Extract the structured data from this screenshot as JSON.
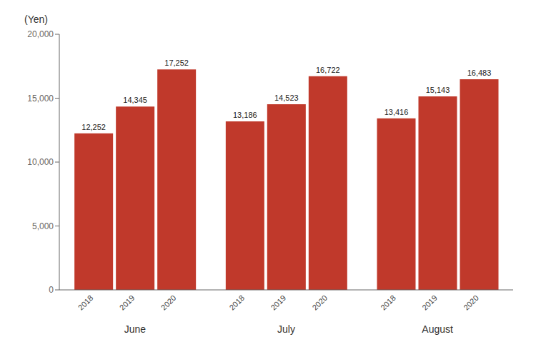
{
  "chart_data": {
    "type": "bar",
    "ylabel": "(Yen)",
    "categories": [
      "June",
      "July",
      "August"
    ],
    "series": [
      {
        "name": "2018",
        "color": "#C0392B",
        "values": [
          12252,
          13186,
          13416
        ],
        "value_labels": [
          "12,252",
          "13,186",
          "13,416"
        ]
      },
      {
        "name": "2019",
        "color": "#C0392B",
        "values": [
          14345,
          14523,
          15143
        ],
        "value_labels": [
          "14,345",
          "14,523",
          "15,143"
        ]
      },
      {
        "name": "2020",
        "color": "#C0392B",
        "values": [
          17252,
          16722,
          16483
        ],
        "value_labels": [
          "17,252",
          "16,722",
          "16,483"
        ]
      }
    ],
    "ylim": [
      0,
      20000
    ],
    "yticks": [
      0,
      {
        "value": 5000,
        "label": "5,000"
      },
      {
        "value": 10000,
        "label": "10,000"
      },
      {
        "value": 15000,
        "label": "15,000"
      },
      {
        "value": 20000,
        "label": "20,000"
      }
    ],
    "data_labels": true,
    "grid": false
  }
}
